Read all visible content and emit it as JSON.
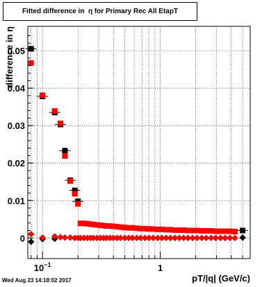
{
  "title": "Fitted difference in  η for Primary Rec All EtapT",
  "timestamp": "Wed Aug 23 14:18:02 2017",
  "chart_data": {
    "type": "scatter",
    "title": "Fitted difference in  η for Primary Rec All EtapT",
    "xlabel": "pT/|q| (GeV/c)",
    "ylabel": "difference in  η",
    "xscale": "log",
    "xlim": [
      0.075,
      5.8
    ],
    "ylim": [
      -0.0055,
      0.0565
    ],
    "grid": true,
    "yticks": [
      {
        "v": 0,
        "label": "0"
      },
      {
        "v": 0.01,
        "label": "0.01"
      },
      {
        "v": 0.02,
        "label": "0.02"
      },
      {
        "v": 0.03,
        "label": "0.03"
      },
      {
        "v": 0.04,
        "label": "0.04"
      },
      {
        "v": 0.05,
        "label": "0.05"
      }
    ],
    "xticks": [
      {
        "v": 0.1,
        "label": "10",
        "sup": "−1"
      },
      {
        "v": 1,
        "label": "1",
        "sup": ""
      }
    ],
    "colors": {
      "black": "#000000",
      "red": "#ff0000",
      "red_edge": "#b30000"
    },
    "series": [
      {
        "marker": "square",
        "color": "#000000",
        "x": [
          0.08,
          0.1,
          0.127,
          0.142,
          0.155,
          0.172,
          0.188,
          0.2,
          5.0
        ],
        "y": [
          0.0505,
          0.0378,
          0.0335,
          0.0303,
          0.0233,
          0.0154,
          0.0127,
          0.0098,
          0.002
        ]
      },
      {
        "marker": "square",
        "color": "#ff0000",
        "x": [
          0.08,
          0.1,
          0.127,
          0.142,
          0.155,
          0.172,
          0.188,
          0.2,
          0.21,
          0.225,
          0.24,
          0.255,
          0.27,
          0.29,
          0.31,
          0.33,
          0.35,
          0.375,
          0.4,
          0.43,
          0.46,
          0.5,
          0.54,
          0.58,
          0.63,
          0.68,
          0.74,
          0.8,
          0.87,
          0.95,
          1.03,
          1.12,
          1.22,
          1.33,
          1.45,
          1.58,
          1.72,
          1.88,
          2.05,
          2.25,
          2.45,
          2.7,
          2.95,
          3.25,
          3.55,
          3.9,
          4.3
        ],
        "y": [
          0.0467,
          0.0381,
          0.0339,
          0.0306,
          0.0219,
          0.0152,
          0.0118,
          0.0091,
          0.0039,
          0.0039,
          0.0038,
          0.0037,
          0.0036,
          0.0035,
          0.0034,
          0.0033,
          0.0032,
          0.0032,
          0.0031,
          0.003,
          0.0029,
          0.0028,
          0.0027,
          0.0027,
          0.0026,
          0.0025,
          0.0025,
          0.0024,
          0.0024,
          0.0023,
          0.0023,
          0.0022,
          0.0022,
          0.0021,
          0.0021,
          0.0021,
          0.002,
          0.002,
          0.002,
          0.0019,
          0.0019,
          0.0019,
          0.0018,
          0.0018,
          0.0018,
          0.0018,
          0.0017
        ]
      },
      {
        "marker": "diamond",
        "color": "#000000",
        "x": [
          0.08,
          0.1,
          0.127,
          5.0
        ],
        "y": [
          -0.001,
          -0.0003,
          -0.0002,
          0.0001
        ]
      },
      {
        "marker": "diamond",
        "color": "#ff0000",
        "x": [
          0.08,
          0.1,
          0.127,
          0.142,
          0.155,
          0.172,
          0.188,
          0.2,
          0.21,
          0.225,
          0.24,
          0.255,
          0.27,
          0.29,
          0.31,
          0.33,
          0.35,
          0.375,
          0.4,
          0.43,
          0.46,
          0.5,
          0.54,
          0.58,
          0.63,
          0.68,
          0.74,
          0.8,
          0.87,
          0.95,
          1.03,
          1.12,
          1.22,
          1.33,
          1.45,
          1.58,
          1.72,
          1.88,
          2.05,
          2.25,
          2.45,
          2.7,
          2.95,
          3.25,
          3.55,
          3.9,
          4.3
        ],
        "y": [
          0.001,
          0.0001,
          0.0004,
          0.0002,
          0.0001,
          0.0001,
          0.0,
          0.0,
          0.0,
          0.0,
          0.0,
          0.0,
          0.0,
          0.0,
          0.0,
          0.0,
          0.0,
          0.0,
          0.0,
          0.0,
          0.0,
          0.0,
          0.0,
          0.0,
          0.0,
          0.0,
          0.0,
          0.0,
          0.0,
          0.0,
          0.0,
          0.0,
          0.0,
          0.0,
          0.0,
          0.0,
          0.0,
          0.0,
          0.0,
          0.0,
          0.0,
          0.0,
          0.0,
          0.0,
          0.0,
          0.0,
          0.0
        ]
      }
    ]
  }
}
